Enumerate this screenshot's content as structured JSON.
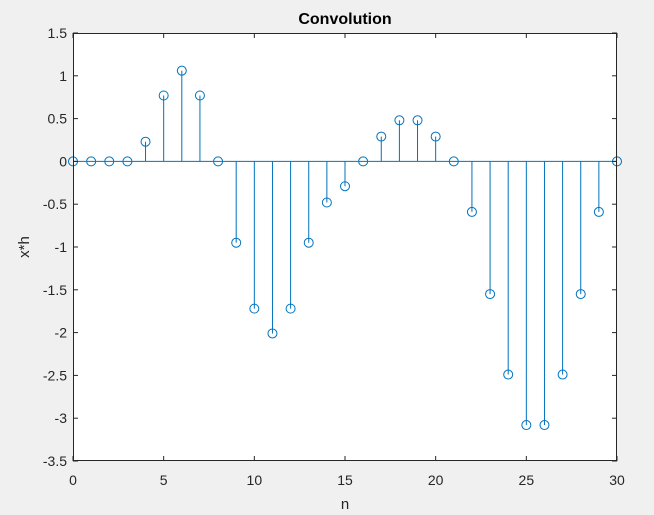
{
  "chart_data": {
    "type": "stem",
    "title": "Convolution",
    "xlabel": "n",
    "ylabel": "x*h",
    "xlim": [
      0,
      30
    ],
    "ylim": [
      -3.5,
      1.5
    ],
    "xticks": [
      0,
      5,
      10,
      15,
      20,
      25,
      30
    ],
    "xtick_labels": [
      "0",
      "5",
      "10",
      "15",
      "20",
      "25",
      "30"
    ],
    "yticks": [
      1.5,
      1,
      0.5,
      0,
      -0.5,
      -1,
      -1.5,
      -2,
      -2.5,
      -3,
      -3.5
    ],
    "ytick_labels": [
      "1.5",
      "1",
      "0.5",
      "0",
      "-0.5",
      "-1",
      "-1.5",
      "-2",
      "-2.5",
      "-3",
      "-3.5"
    ],
    "grid": false,
    "series": [
      {
        "x": [
          0,
          1,
          2,
          3,
          4,
          5,
          6,
          7,
          8,
          9,
          10,
          11,
          12,
          13,
          14,
          15,
          16,
          17,
          18,
          19,
          20,
          21,
          22,
          23,
          24,
          25,
          26,
          27,
          28,
          29,
          30
        ],
        "values": [
          0,
          0,
          0,
          0,
          0.23,
          0.77,
          1.06,
          0.77,
          0,
          -0.95,
          -1.72,
          -2.01,
          -1.72,
          -0.95,
          -0.48,
          -0.29,
          0,
          0.29,
          0.48,
          0.48,
          0.29,
          0,
          -0.59,
          -1.55,
          -2.49,
          -3.08,
          -3.08,
          -2.49,
          -1.55,
          -0.59,
          0
        ],
        "color": "#0072bd",
        "marker": "circle-open"
      }
    ],
    "axes_color": "#262626",
    "axes_background": "#ffffff"
  }
}
